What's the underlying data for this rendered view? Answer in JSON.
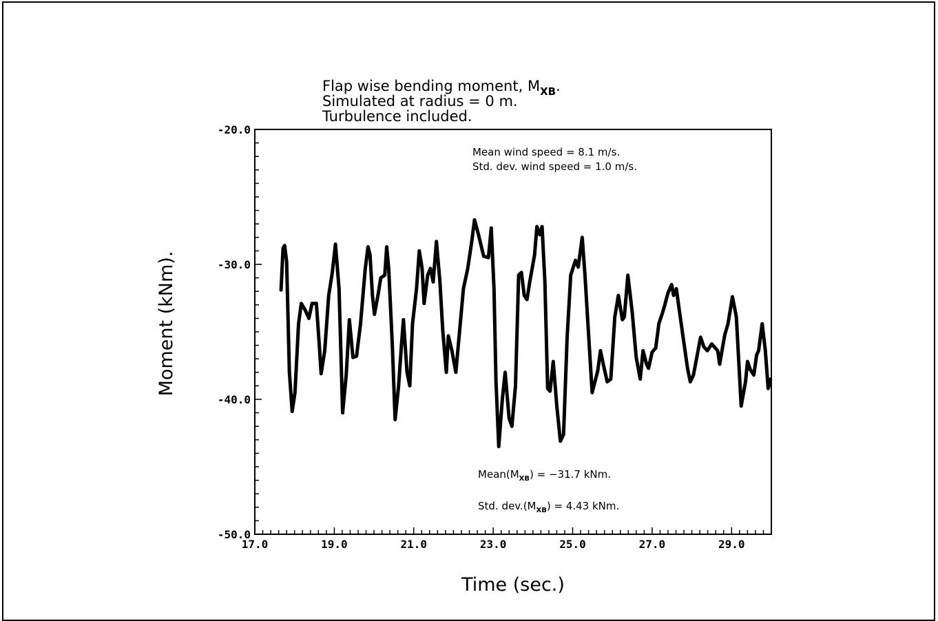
{
  "chart_data": {
    "type": "line",
    "title_lines": [
      "Flap wise bending moment, M",
      "Simulated at radius = 0 m.",
      "Turbulence included."
    ],
    "title_subscript": "XB",
    "xlabel": "Time (sec.)",
    "ylabel": "Moment (kNm).",
    "xlim": [
      17.0,
      30.0
    ],
    "ylim": [
      -50.0,
      -20.0
    ],
    "xticks": [
      "17.0",
      "19.0",
      "21.0",
      "23.0",
      "25.0",
      "27.0",
      "29.0"
    ],
    "yticks": [
      "-20.0",
      "-30.0",
      "-40.0",
      "-50.0"
    ],
    "grid": false,
    "annotations": {
      "mean_wind": "Mean wind speed = 8.1 m/s.",
      "std_wind": "Std. dev. wind speed = 1.0 m/s.",
      "mean_m_prefix": "Mean(M",
      "mean_m_suffix": ") = −31.7 kNm.",
      "std_m_prefix": "Std. dev.(M",
      "std_m_suffix": ") = 4.43 kNm.",
      "sub": "XB"
    },
    "series": [
      {
        "color": "#000000",
        "x": [
          17.66,
          17.71,
          17.75,
          17.8,
          17.87,
          17.94,
          18.01,
          18.1,
          18.17,
          18.27,
          18.36,
          18.44,
          18.55,
          18.62,
          18.67,
          18.76,
          18.86,
          18.95,
          19.03,
          19.12,
          19.21,
          19.3,
          19.38,
          19.47,
          19.56,
          19.66,
          19.78,
          19.85,
          19.9,
          19.96,
          20.01,
          20.1,
          20.17,
          20.27,
          20.32,
          20.37,
          20.46,
          20.53,
          20.62,
          20.69,
          20.74,
          20.83,
          20.9,
          20.97,
          21.07,
          21.14,
          21.21,
          21.26,
          21.35,
          21.42,
          21.49,
          21.57,
          21.66,
          21.73,
          21.82,
          21.87,
          21.96,
          22.06,
          22.17,
          22.25,
          22.36,
          22.46,
          22.53,
          22.63,
          22.76,
          22.88,
          22.95,
          23.02,
          23.07,
          23.14,
          23.23,
          23.3,
          23.4,
          23.47,
          23.56,
          23.64,
          23.71,
          23.78,
          23.85,
          23.92,
          24.04,
          24.1,
          24.17,
          24.23,
          24.3,
          24.37,
          24.43,
          24.51,
          24.6,
          24.69,
          24.77,
          24.86,
          24.95,
          25.07,
          25.14,
          25.24,
          25.31,
          25.49,
          25.63,
          25.7,
          25.77,
          25.87,
          25.96,
          26.06,
          26.15,
          26.25,
          26.3,
          26.39,
          26.5,
          26.6,
          26.7,
          26.77,
          26.86,
          26.91,
          27.0,
          27.09,
          27.17,
          27.26,
          27.31,
          27.4,
          27.49,
          27.54,
          27.61,
          27.66,
          27.78,
          27.89,
          27.96,
          28.04,
          28.22,
          28.3,
          28.39,
          28.5,
          28.65,
          28.7,
          28.77,
          28.83,
          28.91,
          29.02,
          29.12,
          29.24,
          29.35,
          29.4,
          29.47,
          29.56,
          29.63,
          29.68,
          29.77,
          29.85,
          29.92,
          29.98
        ],
        "y": [
          -31.9,
          -28.8,
          -28.6,
          -29.8,
          -38.0,
          -40.9,
          -39.5,
          -34.4,
          -32.9,
          -33.4,
          -34.0,
          -32.9,
          -32.9,
          -35.9,
          -38.1,
          -36.4,
          -32.3,
          -30.6,
          -28.5,
          -31.8,
          -41.0,
          -38.2,
          -34.1,
          -36.9,
          -36.8,
          -34.4,
          -30.3,
          -28.7,
          -29.3,
          -32.3,
          -33.7,
          -32.3,
          -31.0,
          -30.8,
          -28.7,
          -30.3,
          -35.9,
          -41.5,
          -39.0,
          -36.0,
          -34.1,
          -38.0,
          -39.0,
          -34.4,
          -31.8,
          -29.0,
          -30.3,
          -32.9,
          -30.8,
          -30.3,
          -31.3,
          -28.3,
          -31.3,
          -34.9,
          -38.0,
          -35.3,
          -36.4,
          -38.0,
          -34.4,
          -31.8,
          -30.3,
          -28.3,
          -26.7,
          -27.8,
          -29.4,
          -29.5,
          -27.3,
          -31.8,
          -38.7,
          -43.5,
          -40.0,
          -38.0,
          -41.4,
          -42.0,
          -39.0,
          -30.8,
          -30.6,
          -32.3,
          -32.6,
          -31.3,
          -29.3,
          -27.2,
          -27.8,
          -27.2,
          -31.3,
          -39.2,
          -39.4,
          -37.2,
          -40.5,
          -43.1,
          -42.6,
          -35.4,
          -30.8,
          -29.7,
          -30.2,
          -28.0,
          -30.8,
          -39.5,
          -37.9,
          -36.4,
          -37.4,
          -38.7,
          -38.5,
          -33.9,
          -32.3,
          -34.1,
          -33.9,
          -30.8,
          -33.6,
          -36.9,
          -38.5,
          -36.4,
          -37.4,
          -37.7,
          -36.5,
          -36.2,
          -34.4,
          -33.6,
          -33.1,
          -32.1,
          -31.5,
          -32.3,
          -31.8,
          -32.9,
          -35.4,
          -37.7,
          -38.7,
          -38.2,
          -35.4,
          -36.1,
          -36.4,
          -35.9,
          -36.4,
          -37.4,
          -36.2,
          -35.2,
          -34.4,
          -32.4,
          -33.9,
          -40.5,
          -38.7,
          -37.2,
          -37.8,
          -38.2,
          -36.7,
          -36.4,
          -34.4,
          -36.4,
          -39.2,
          -38.5
        ]
      }
    ]
  }
}
